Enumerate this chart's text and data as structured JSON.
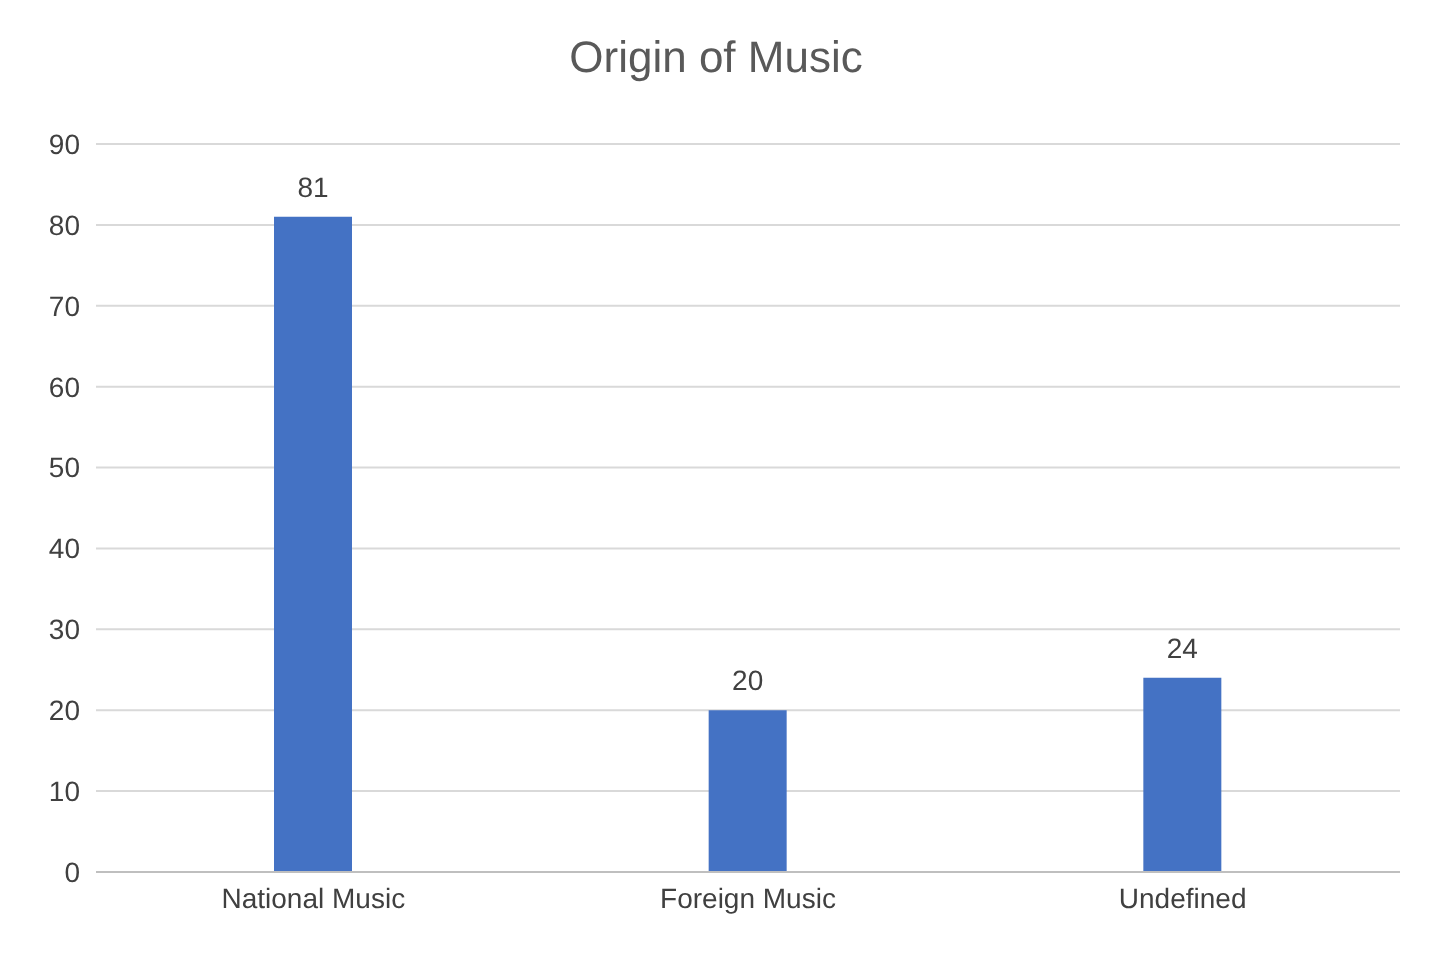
{
  "chart_data": {
    "type": "bar",
    "title": "Origin of Music",
    "categories": [
      "National Music",
      "Foreign Music",
      "Undefined"
    ],
    "values": [
      81,
      20,
      24
    ],
    "color": "#4472c4",
    "ylim": [
      0,
      90
    ],
    "yticks": [
      0,
      10,
      20,
      30,
      40,
      50,
      60,
      70,
      80,
      90
    ],
    "grid": "y",
    "data_labels": true
  }
}
